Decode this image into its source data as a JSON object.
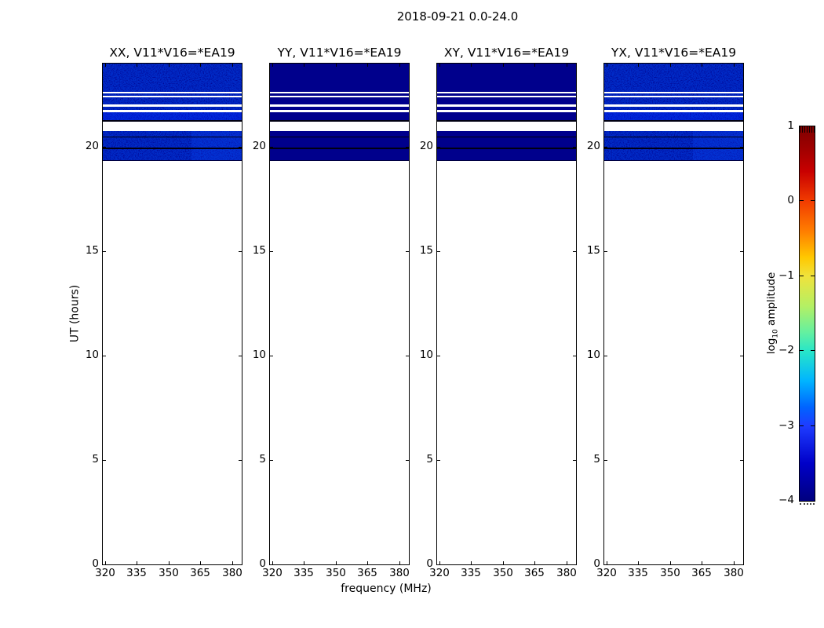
{
  "figure": {
    "title": "2018-09-21 0.0-24.0"
  },
  "chart_data": {
    "type": "heatmap",
    "title": "2018-09-21 0.0-24.0",
    "xlabel": "frequency (MHz)",
    "ylabel": "UT (hours)",
    "xlim": [
      319,
      384.5
    ],
    "ylim": [
      0,
      24
    ],
    "xticks": [
      320,
      335,
      350,
      365,
      380
    ],
    "yticks": [
      0,
      5,
      10,
      15,
      20
    ],
    "panels": [
      {
        "label": "XX, V11*V16=*EA19",
        "noisy": true
      },
      {
        "label": "YY, V11*V16=*EA19",
        "noisy": false
      },
      {
        "label": "XY, V11*V16=*EA19",
        "noisy": false
      },
      {
        "label": "YX, V11*V16=*EA19",
        "noisy": true
      }
    ],
    "data_window": {
      "ut_top": 24.0,
      "ut_bottom": 19.37
    },
    "stripes": [
      [
        24.0,
        22.66,
        "data"
      ],
      [
        22.66,
        22.57,
        "flag"
      ],
      [
        22.57,
        22.47,
        "data"
      ],
      [
        22.47,
        22.4,
        "flag"
      ],
      [
        22.4,
        22.06,
        "data"
      ],
      [
        22.06,
        21.93,
        "flag"
      ],
      [
        21.93,
        21.78,
        "data"
      ],
      [
        21.78,
        21.67,
        "flag"
      ],
      [
        21.67,
        21.29,
        "bright"
      ],
      [
        21.29,
        21.23,
        "dark"
      ],
      [
        21.23,
        20.76,
        "flag"
      ],
      [
        20.76,
        20.52,
        "data"
      ],
      [
        20.52,
        20.47,
        "dark"
      ],
      [
        20.47,
        19.96,
        "data"
      ],
      [
        19.96,
        19.88,
        "dark"
      ],
      [
        19.88,
        19.37,
        "data"
      ]
    ],
    "colors": {
      "data": "#00008c",
      "flag": "#ffffff",
      "dark": "#000012",
      "bright": "#0000b8"
    },
    "colorbar": {
      "tick_labels": [
        "1",
        "0",
        "−1",
        "−2",
        "−3",
        "−4"
      ],
      "label_prefix": "log",
      "label_sub": "10",
      "label_suffix": " amplitude"
    }
  }
}
